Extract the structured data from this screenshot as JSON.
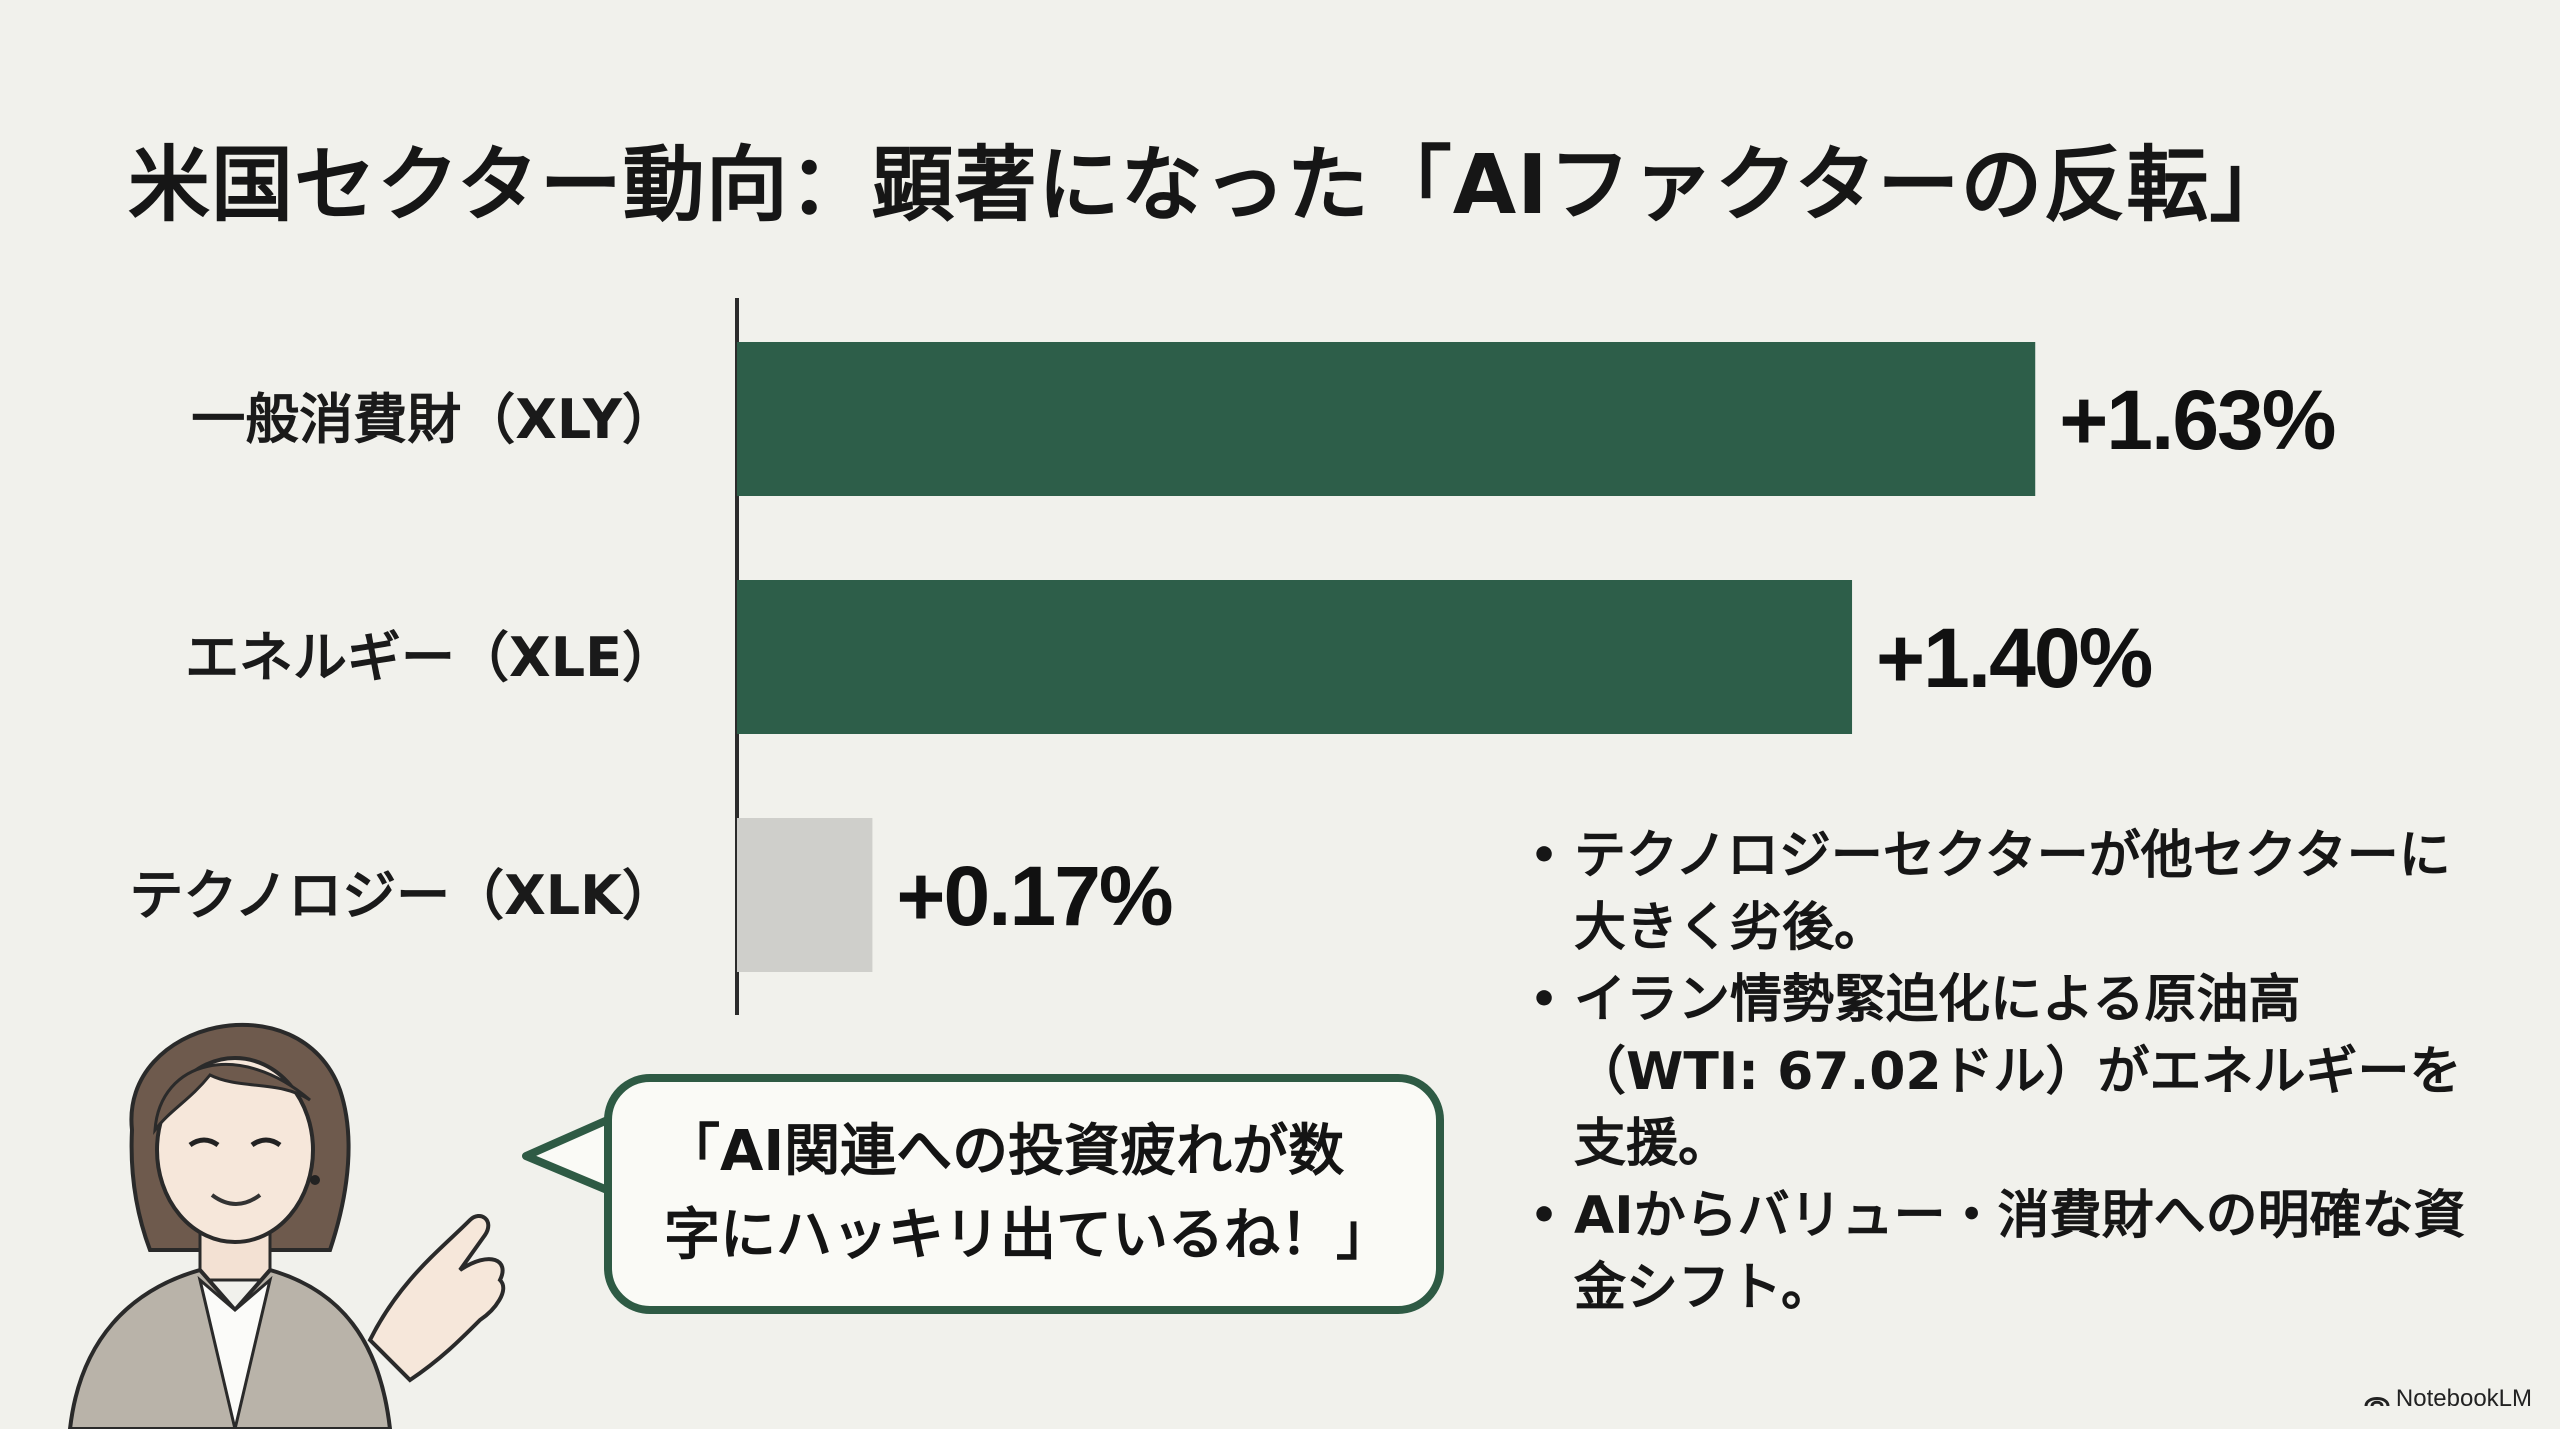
{
  "title": "米国セクター動向：顕著になった「AIファクターの反転」",
  "colors": {
    "primary_bar": "#2d5e49",
    "muted_bar": "#cfcfcb",
    "bubble_border": "#2e5a44"
  },
  "chart_data": {
    "type": "bar",
    "orientation": "horizontal",
    "categories": [
      "一般消費財（XLY）",
      "エネルギー（XLE）",
      "テクノロジー（XLK）"
    ],
    "values": [
      1.63,
      1.4,
      0.17
    ],
    "value_labels": [
      "+1.63%",
      "+1.40%",
      "+0.17%"
    ],
    "bar_colors": [
      "#2d5e49",
      "#2d5e49",
      "#cfcfcb"
    ],
    "xlim": [
      0,
      2.26
    ],
    "grid": false,
    "legend": "none"
  },
  "bullets": [
    "テクノロジーセクターが他セクターに大きく劣後。",
    "イラン情勢緊迫化による原油高（WTI: 67.02ドル）がエネルギーを支援。",
    "AIからバリュー・消費財への明確な資金シフト。"
  ],
  "speech_bubble": {
    "text": "「AI関連への投資疲れが数字にハッキリ出ているね！」"
  },
  "brand": {
    "name": "NotebookLM",
    "icon": "notebooklm-logo-icon"
  }
}
